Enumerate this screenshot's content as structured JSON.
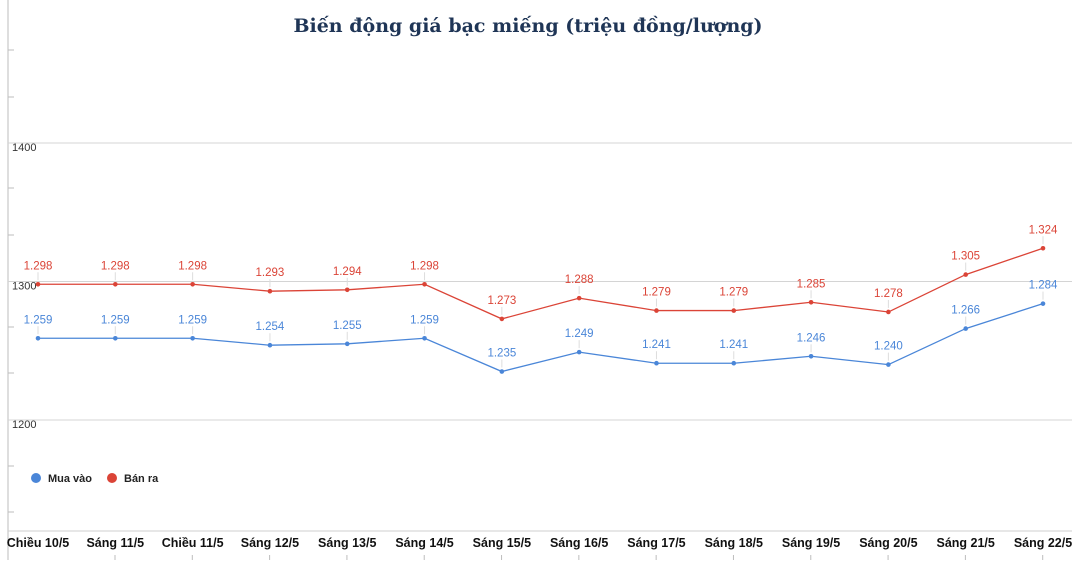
{
  "chart_data": {
    "type": "line",
    "title": "Biến động giá bạc miếng (triệu đồng/lượng)",
    "xlabel": "",
    "ylabel": "",
    "ylim": [
      1200,
      1400
    ],
    "yticks": [
      "1200",
      "1300",
      "1400"
    ],
    "grid": true,
    "legend_position": "bottom-left",
    "categories": [
      "Chiều 10/5",
      "Sáng 11/5",
      "Chiều 11/5",
      "Sáng 12/5",
      "Sáng 13/5",
      "Sáng 14/5",
      "Sáng 15/5",
      "Sáng 16/5",
      "Sáng 17/5",
      "Sáng 18/5",
      "Sáng 19/5",
      "Sáng 20/5",
      "Sáng 21/5",
      "Sáng 22/5"
    ],
    "series": [
      {
        "name": "Mua vào",
        "color": "#4a86d8",
        "values": [
          1259,
          1259,
          1259,
          1254,
          1255,
          1259,
          1235,
          1249,
          1241,
          1241,
          1246,
          1240,
          1266,
          1284
        ],
        "labels": [
          "1.259",
          "1.259",
          "1.259",
          "1.254",
          "1.255",
          "1.259",
          "1.235",
          "1.249",
          "1.241",
          "1.241",
          "1.246",
          "1.240",
          "1.266",
          "1.284"
        ]
      },
      {
        "name": "Bán ra",
        "color": "#db4437",
        "values": [
          1298,
          1298,
          1298,
          1293,
          1294,
          1298,
          1273,
          1288,
          1279,
          1279,
          1285,
          1278,
          1305,
          1324
        ],
        "labels": [
          "1.298",
          "1.298",
          "1.298",
          "1.293",
          "1.294",
          "1.298",
          "1.273",
          "1.288",
          "1.279",
          "1.279",
          "1.285",
          "1.278",
          "1.305",
          "1.324"
        ]
      }
    ]
  }
}
